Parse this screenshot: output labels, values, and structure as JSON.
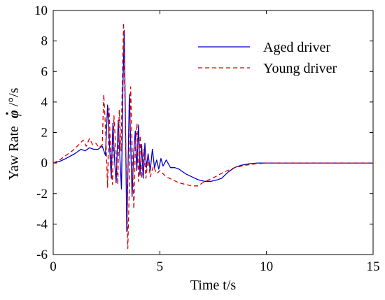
{
  "chart_data": {
    "type": "line",
    "title": "",
    "xlabel": "Time t/s",
    "ylabel": "Yaw Rate",
    "ylabel_symbol": "φ",
    "ylabel_unit": "/°/s",
    "xlim": [
      0,
      15
    ],
    "ylim": [
      -6,
      10
    ],
    "xticks": [
      "0",
      "5",
      "10",
      "15"
    ],
    "yticks": [
      "-6",
      "-4",
      "-2",
      "0",
      "2",
      "4",
      "6",
      "8",
      "10"
    ],
    "grid": false,
    "legend_position": "top-right",
    "series": [
      {
        "name": "Aged driver",
        "color": "#0000cc",
        "style": "solid",
        "x": [
          0,
          0.3,
          0.6,
          1.0,
          1.3,
          1.5,
          1.7,
          1.9,
          2.1,
          2.3,
          2.45,
          2.55,
          2.65,
          2.72,
          2.8,
          2.88,
          2.95,
          3.05,
          3.12,
          3.2,
          3.27,
          3.33,
          3.38,
          3.45,
          3.5,
          3.57,
          3.63,
          3.7,
          3.77,
          3.85,
          3.92,
          4.0,
          4.07,
          4.15,
          4.22,
          4.3,
          4.37,
          4.45,
          4.55,
          4.65,
          4.75,
          4.85,
          4.95,
          5.05,
          5.15,
          5.3,
          5.5,
          5.7,
          5.9,
          6.2,
          6.5,
          6.8,
          7.1,
          7.4,
          7.7,
          7.9,
          8.2,
          8.5,
          8.8,
          9.2,
          9.6,
          10.0,
          10.5,
          11.0,
          12.0,
          13.0,
          14.0,
          15.0
        ],
        "values": [
          0,
          0.1,
          0.3,
          0.6,
          0.9,
          0.8,
          1.0,
          0.9,
          0.9,
          1.1,
          0.5,
          3.8,
          1.0,
          -1.0,
          2.6,
          0.2,
          -1.3,
          2.8,
          0.5,
          -1.7,
          5.0,
          8.7,
          3.5,
          -4.5,
          -1.0,
          4.5,
          1.5,
          -2.2,
          0.6,
          2.1,
          -0.5,
          2.5,
          -0.8,
          1.2,
          -1.0,
          1.3,
          -0.3,
          0.6,
          -0.5,
          0.9,
          -0.3,
          0.2,
          -0.4,
          0.3,
          -0.2,
          0.2,
          -0.3,
          -0.3,
          -0.4,
          -0.7,
          -0.9,
          -1.1,
          -1.2,
          -1.2,
          -1.1,
          -1.0,
          -0.6,
          -0.3,
          -0.15,
          -0.05,
          0,
          0,
          0,
          0,
          0,
          0,
          0,
          0
        ]
      },
      {
        "name": "Young driver",
        "color": "#dd0000",
        "style": "dashed",
        "x": [
          0,
          0.3,
          0.6,
          0.9,
          1.2,
          1.4,
          1.55,
          1.7,
          1.85,
          2.0,
          2.15,
          2.3,
          2.37,
          2.45,
          2.55,
          2.62,
          2.7,
          2.78,
          2.85,
          2.95,
          3.03,
          3.1,
          3.18,
          3.25,
          3.3,
          3.35,
          3.42,
          3.5,
          3.57,
          3.63,
          3.7,
          3.78,
          3.85,
          3.93,
          4.0,
          4.08,
          4.15,
          4.25,
          4.35,
          4.45,
          4.55,
          4.7,
          4.85,
          5.0,
          5.3,
          5.6,
          5.9,
          6.2,
          6.5,
          6.8,
          7.0,
          7.3,
          7.6,
          8.0,
          8.5,
          9.0,
          9.5,
          10.0,
          10.5,
          11.0,
          12.0,
          13.0,
          14.0,
          15.0
        ],
        "values": [
          0,
          0.2,
          0.5,
          0.8,
          1.2,
          1.5,
          1.1,
          1.6,
          1.2,
          1.3,
          1.0,
          1.2,
          4.5,
          2.5,
          -1.6,
          3.6,
          0.4,
          -1.4,
          3.1,
          0.5,
          -1.4,
          3.5,
          0.8,
          6.0,
          9.2,
          5.0,
          0.0,
          -5.6,
          -1.5,
          5.0,
          1.2,
          -3.0,
          1.0,
          2.6,
          -1.2,
          1.8,
          -1.0,
          0.9,
          -1.0,
          0.4,
          -0.9,
          -0.2,
          -0.7,
          -0.5,
          -0.9,
          -1.1,
          -1.3,
          -1.4,
          -1.5,
          -1.5,
          -1.3,
          -1.1,
          -0.9,
          -0.6,
          -0.3,
          -0.15,
          -0.05,
          0,
          0,
          0,
          0,
          0,
          0,
          0
        ]
      }
    ]
  }
}
